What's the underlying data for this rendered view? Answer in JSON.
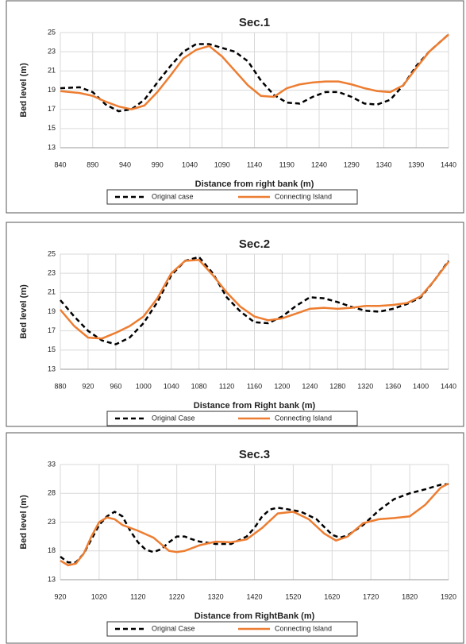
{
  "chart_data": [
    {
      "type": "line",
      "title": "Sec.1",
      "y_label": "Bed level (m)",
      "x_label": "Distance from right bank (m)",
      "xlim": [
        840,
        1440
      ],
      "xticks": [
        840,
        890,
        940,
        990,
        1040,
        1090,
        1140,
        1190,
        1240,
        1290,
        1340,
        1390,
        1440
      ],
      "ylim": [
        13,
        25
      ],
      "yticks": [
        13,
        15,
        17,
        19,
        21,
        23,
        25
      ],
      "grid": true,
      "series": [
        {
          "name": "Original case",
          "color": "#000000",
          "linestyle": "dashed",
          "x": [
            840,
            870,
            890,
            910,
            930,
            950,
            970,
            990,
            1010,
            1030,
            1050,
            1070,
            1090,
            1110,
            1130,
            1150,
            1170,
            1190,
            1210,
            1230,
            1250,
            1270,
            1290,
            1310,
            1330,
            1350,
            1370,
            1390,
            1410,
            1440
          ],
          "values": [
            19.2,
            19.3,
            18.8,
            17.5,
            16.8,
            17.0,
            18.0,
            19.8,
            21.5,
            23.0,
            23.8,
            23.8,
            23.4,
            23.0,
            22.0,
            20.0,
            18.5,
            17.7,
            17.6,
            18.3,
            18.8,
            18.8,
            18.3,
            17.6,
            17.5,
            18.0,
            19.5,
            21.5,
            23.0,
            24.8
          ]
        },
        {
          "name": "Connecting Island",
          "color": "#ed7d31",
          "linestyle": "solid",
          "x": [
            840,
            870,
            890,
            910,
            930,
            950,
            970,
            990,
            1010,
            1030,
            1050,
            1070,
            1090,
            1110,
            1130,
            1150,
            1170,
            1190,
            1210,
            1230,
            1250,
            1270,
            1290,
            1310,
            1330,
            1350,
            1370,
            1390,
            1410,
            1440
          ],
          "values": [
            18.9,
            18.7,
            18.4,
            17.8,
            17.3,
            17.0,
            17.4,
            18.8,
            20.5,
            22.3,
            23.2,
            23.6,
            22.5,
            21.0,
            19.5,
            18.4,
            18.3,
            19.2,
            19.6,
            19.8,
            19.9,
            19.9,
            19.6,
            19.2,
            18.9,
            18.8,
            19.5,
            21.3,
            23.0,
            24.8
          ]
        }
      ]
    },
    {
      "type": "line",
      "title": "Sec.2",
      "y_label": "Bed level (m)",
      "x_label": "Distance from Right bank (m)",
      "xlim": [
        880,
        1440
      ],
      "xticks": [
        880,
        920,
        960,
        1000,
        1040,
        1080,
        1120,
        1160,
        1200,
        1240,
        1280,
        1320,
        1360,
        1400,
        1440
      ],
      "ylim": [
        13,
        25
      ],
      "yticks": [
        13,
        15,
        17,
        19,
        21,
        23,
        25
      ],
      "grid": true,
      "series": [
        {
          "name": "Original Case",
          "color": "#000000",
          "linestyle": "dashed",
          "x": [
            880,
            900,
            920,
            940,
            960,
            980,
            1000,
            1020,
            1040,
            1060,
            1080,
            1100,
            1120,
            1140,
            1160,
            1180,
            1200,
            1220,
            1240,
            1260,
            1280,
            1300,
            1320,
            1340,
            1360,
            1380,
            1400,
            1420,
            1440
          ],
          "values": [
            20.2,
            18.5,
            17.0,
            16.0,
            15.6,
            16.3,
            17.8,
            20.0,
            22.8,
            24.3,
            24.7,
            23.0,
            20.5,
            19.0,
            17.9,
            17.8,
            18.5,
            19.6,
            20.5,
            20.4,
            20.0,
            19.5,
            19.1,
            19.0,
            19.3,
            19.8,
            20.5,
            22.3,
            24.3
          ]
        },
        {
          "name": "Connecting Island",
          "color": "#ed7d31",
          "linestyle": "solid",
          "x": [
            880,
            900,
            920,
            940,
            960,
            980,
            1000,
            1020,
            1040,
            1060,
            1080,
            1100,
            1120,
            1140,
            1160,
            1180,
            1200,
            1220,
            1240,
            1260,
            1280,
            1300,
            1320,
            1340,
            1360,
            1380,
            1400,
            1420,
            1440
          ],
          "values": [
            19.2,
            17.5,
            16.3,
            16.2,
            16.8,
            17.5,
            18.5,
            20.4,
            23.0,
            24.3,
            24.4,
            22.8,
            21.0,
            19.5,
            18.5,
            18.1,
            18.3,
            18.8,
            19.3,
            19.4,
            19.3,
            19.4,
            19.6,
            19.6,
            19.7,
            19.9,
            20.6,
            22.3,
            24.2
          ]
        }
      ]
    },
    {
      "type": "line",
      "title": "Sec.3",
      "y_label": "Bed level (m)",
      "x_label": "Distance from RightBank (m)",
      "xlim": [
        920,
        1920
      ],
      "xticks": [
        920,
        1020,
        1120,
        1220,
        1320,
        1420,
        1520,
        1620,
        1720,
        1820,
        1920
      ],
      "ylim": [
        13,
        33
      ],
      "yticks": [
        13,
        18,
        23,
        28,
        33
      ],
      "grid": true,
      "series": [
        {
          "name": "Original Case",
          "color": "#000000",
          "linestyle": "dashed",
          "x": [
            920,
            940,
            960,
            980,
            1000,
            1020,
            1040,
            1060,
            1080,
            1100,
            1120,
            1140,
            1160,
            1180,
            1200,
            1220,
            1240,
            1260,
            1280,
            1320,
            1360,
            1400,
            1420,
            1440,
            1460,
            1480,
            1500,
            1540,
            1580,
            1620,
            1640,
            1660,
            1700,
            1740,
            1780,
            1820,
            1860,
            1900,
            1920
          ],
          "values": [
            17.0,
            16.0,
            16.0,
            17.5,
            20.0,
            22.5,
            24.0,
            24.8,
            24.0,
            21.5,
            19.5,
            18.2,
            17.8,
            18.3,
            19.5,
            20.5,
            20.5,
            20.0,
            19.6,
            19.2,
            19.2,
            20.5,
            22.0,
            24.0,
            25.2,
            25.5,
            25.3,
            24.8,
            23.5,
            20.8,
            20.3,
            20.7,
            22.5,
            25.0,
            27.0,
            28.0,
            28.7,
            29.5,
            29.6
          ]
        },
        {
          "name": "Connecting Island",
          "color": "#ed7d31",
          "linestyle": "solid",
          "x": [
            920,
            940,
            960,
            980,
            1000,
            1020,
            1040,
            1060,
            1080,
            1120,
            1160,
            1200,
            1220,
            1240,
            1280,
            1320,
            1360,
            1400,
            1440,
            1480,
            1520,
            1560,
            1600,
            1630,
            1660,
            1700,
            1740,
            1780,
            1820,
            1860,
            1900,
            1920
          ],
          "values": [
            16.3,
            15.5,
            15.8,
            17.5,
            20.5,
            23.0,
            23.8,
            23.5,
            22.5,
            21.5,
            20.3,
            18.0,
            17.8,
            18.0,
            19.0,
            19.6,
            19.5,
            20.0,
            22.0,
            24.5,
            24.8,
            23.5,
            21.0,
            19.8,
            20.5,
            22.8,
            23.5,
            23.7,
            24.0,
            26.0,
            29.0,
            29.7
          ]
        }
      ]
    }
  ]
}
